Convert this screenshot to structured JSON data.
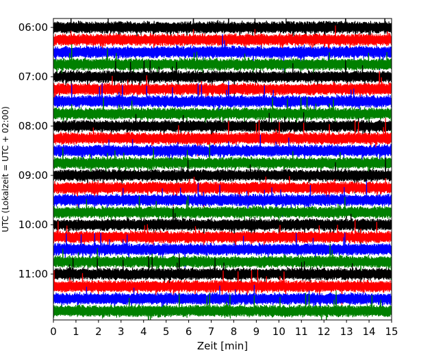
{
  "chart_data": {
    "type": "line",
    "title": "",
    "xlabel": "Zeit  [min]",
    "ylabel": "UTC (Lokalzeit = UTC + 02:00)",
    "xlim": [
      0,
      15
    ],
    "xticks": [
      "0",
      "1",
      "2",
      "3",
      "4",
      "5",
      "6",
      "7",
      "8",
      "9",
      "10",
      "11",
      "12",
      "13",
      "14",
      "15"
    ],
    "yticks": [
      "06:00",
      "07:00",
      "08:00",
      "09:00",
      "10:00",
      "11:00"
    ],
    "trace_interval_min": 15,
    "trace_colors": [
      "#000000",
      "#ff0000",
      "#0000ff",
      "#008000"
    ],
    "traces": [
      "06:00",
      "06:15",
      "06:30",
      "06:45",
      "07:00",
      "07:15",
      "07:30",
      "07:45",
      "08:00",
      "08:15",
      "08:30",
      "08:45",
      "09:00",
      "09:15",
      "09:30",
      "09:45",
      "10:00",
      "10:15",
      "10:30",
      "10:45",
      "11:00",
      "11:15",
      "11:30",
      "11:45"
    ],
    "grid": false
  }
}
